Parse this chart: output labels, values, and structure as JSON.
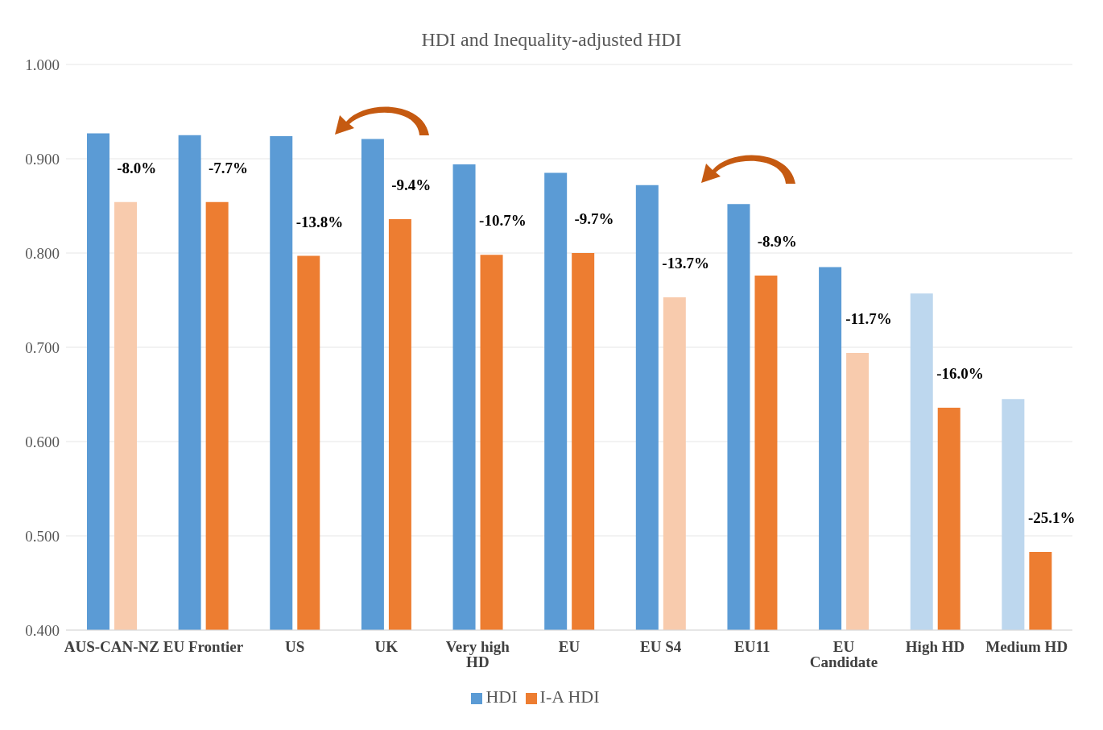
{
  "chart_data": {
    "type": "bar",
    "title": "HDI and Inequality-adjusted HDI",
    "categories": [
      "AUS-CAN-NZ",
      "EU Frontier",
      "US",
      "UK",
      "Very high HD",
      "EU",
      "EU S4",
      "EU11",
      "EU Candidate",
      "High HD",
      "Medium HD"
    ],
    "series": [
      {
        "name": "HDI",
        "color": "#5b9bd5",
        "colors": [
          "#5b9bd5",
          "#5b9bd5",
          "#5b9bd5",
          "#5b9bd5",
          "#5b9bd5",
          "#5b9bd5",
          "#5b9bd5",
          "#5b9bd5",
          "#5b9bd5",
          "#bdd7ee",
          "#bdd7ee"
        ],
        "values": [
          0.927,
          0.925,
          0.924,
          0.921,
          0.894,
          0.885,
          0.872,
          0.852,
          0.785,
          0.757,
          0.645
        ]
      },
      {
        "name": "I-A HDI",
        "color": "#ed7d31",
        "colors": [
          "#f8cbad",
          "#ed7d31",
          "#ed7d31",
          "#ed7d31",
          "#ed7d31",
          "#ed7d31",
          "#f8cbad",
          "#ed7d31",
          "#f8cbad",
          "#ed7d31",
          "#ed7d31"
        ],
        "values": [
          0.854,
          0.854,
          0.797,
          0.836,
          0.798,
          0.8,
          0.753,
          0.776,
          0.694,
          0.636,
          0.483
        ]
      }
    ],
    "annotations": [
      {
        "text": "-8.0%",
        "x": "AUS-CAN-NZ",
        "y": 0.854
      },
      {
        "text": "-7.7%",
        "x": "EU Frontier",
        "y": 0.854
      },
      {
        "text": "-13.8%",
        "x": "US",
        "y": 0.797
      },
      {
        "text": "-9.4%",
        "x": "UK",
        "y": 0.836
      },
      {
        "text": "-10.7%",
        "x": "Very high HD",
        "y": 0.798
      },
      {
        "text": "-9.7%",
        "x": "EU",
        "y": 0.8
      },
      {
        "text": "-13.7%",
        "x": "EU S4",
        "y": 0.753
      },
      {
        "text": "-8.9%",
        "x": "EU11",
        "y": 0.776
      },
      {
        "text": "-11.7%",
        "x": "EU Candidate",
        "y": 0.694
      },
      {
        "text": "-16.0%",
        "x": "High HD",
        "y": 0.636
      },
      {
        "text": "-25.1%",
        "x": "Medium HD",
        "y": 0.483
      }
    ],
    "ylim": [
      0.4,
      1.0
    ],
    "yticks": [
      {
        "value": 0.4,
        "label": "0.400"
      },
      {
        "value": 0.5,
        "label": "0.500"
      },
      {
        "value": 0.6,
        "label": "0.600"
      },
      {
        "value": 0.7,
        "label": "0.700"
      },
      {
        "value": 0.8,
        "label": "0.800"
      },
      {
        "value": 0.9,
        "label": "0.900"
      },
      {
        "value": 1.0,
        "label": "1.000"
      }
    ],
    "grid": "y",
    "legend": "bottom"
  }
}
